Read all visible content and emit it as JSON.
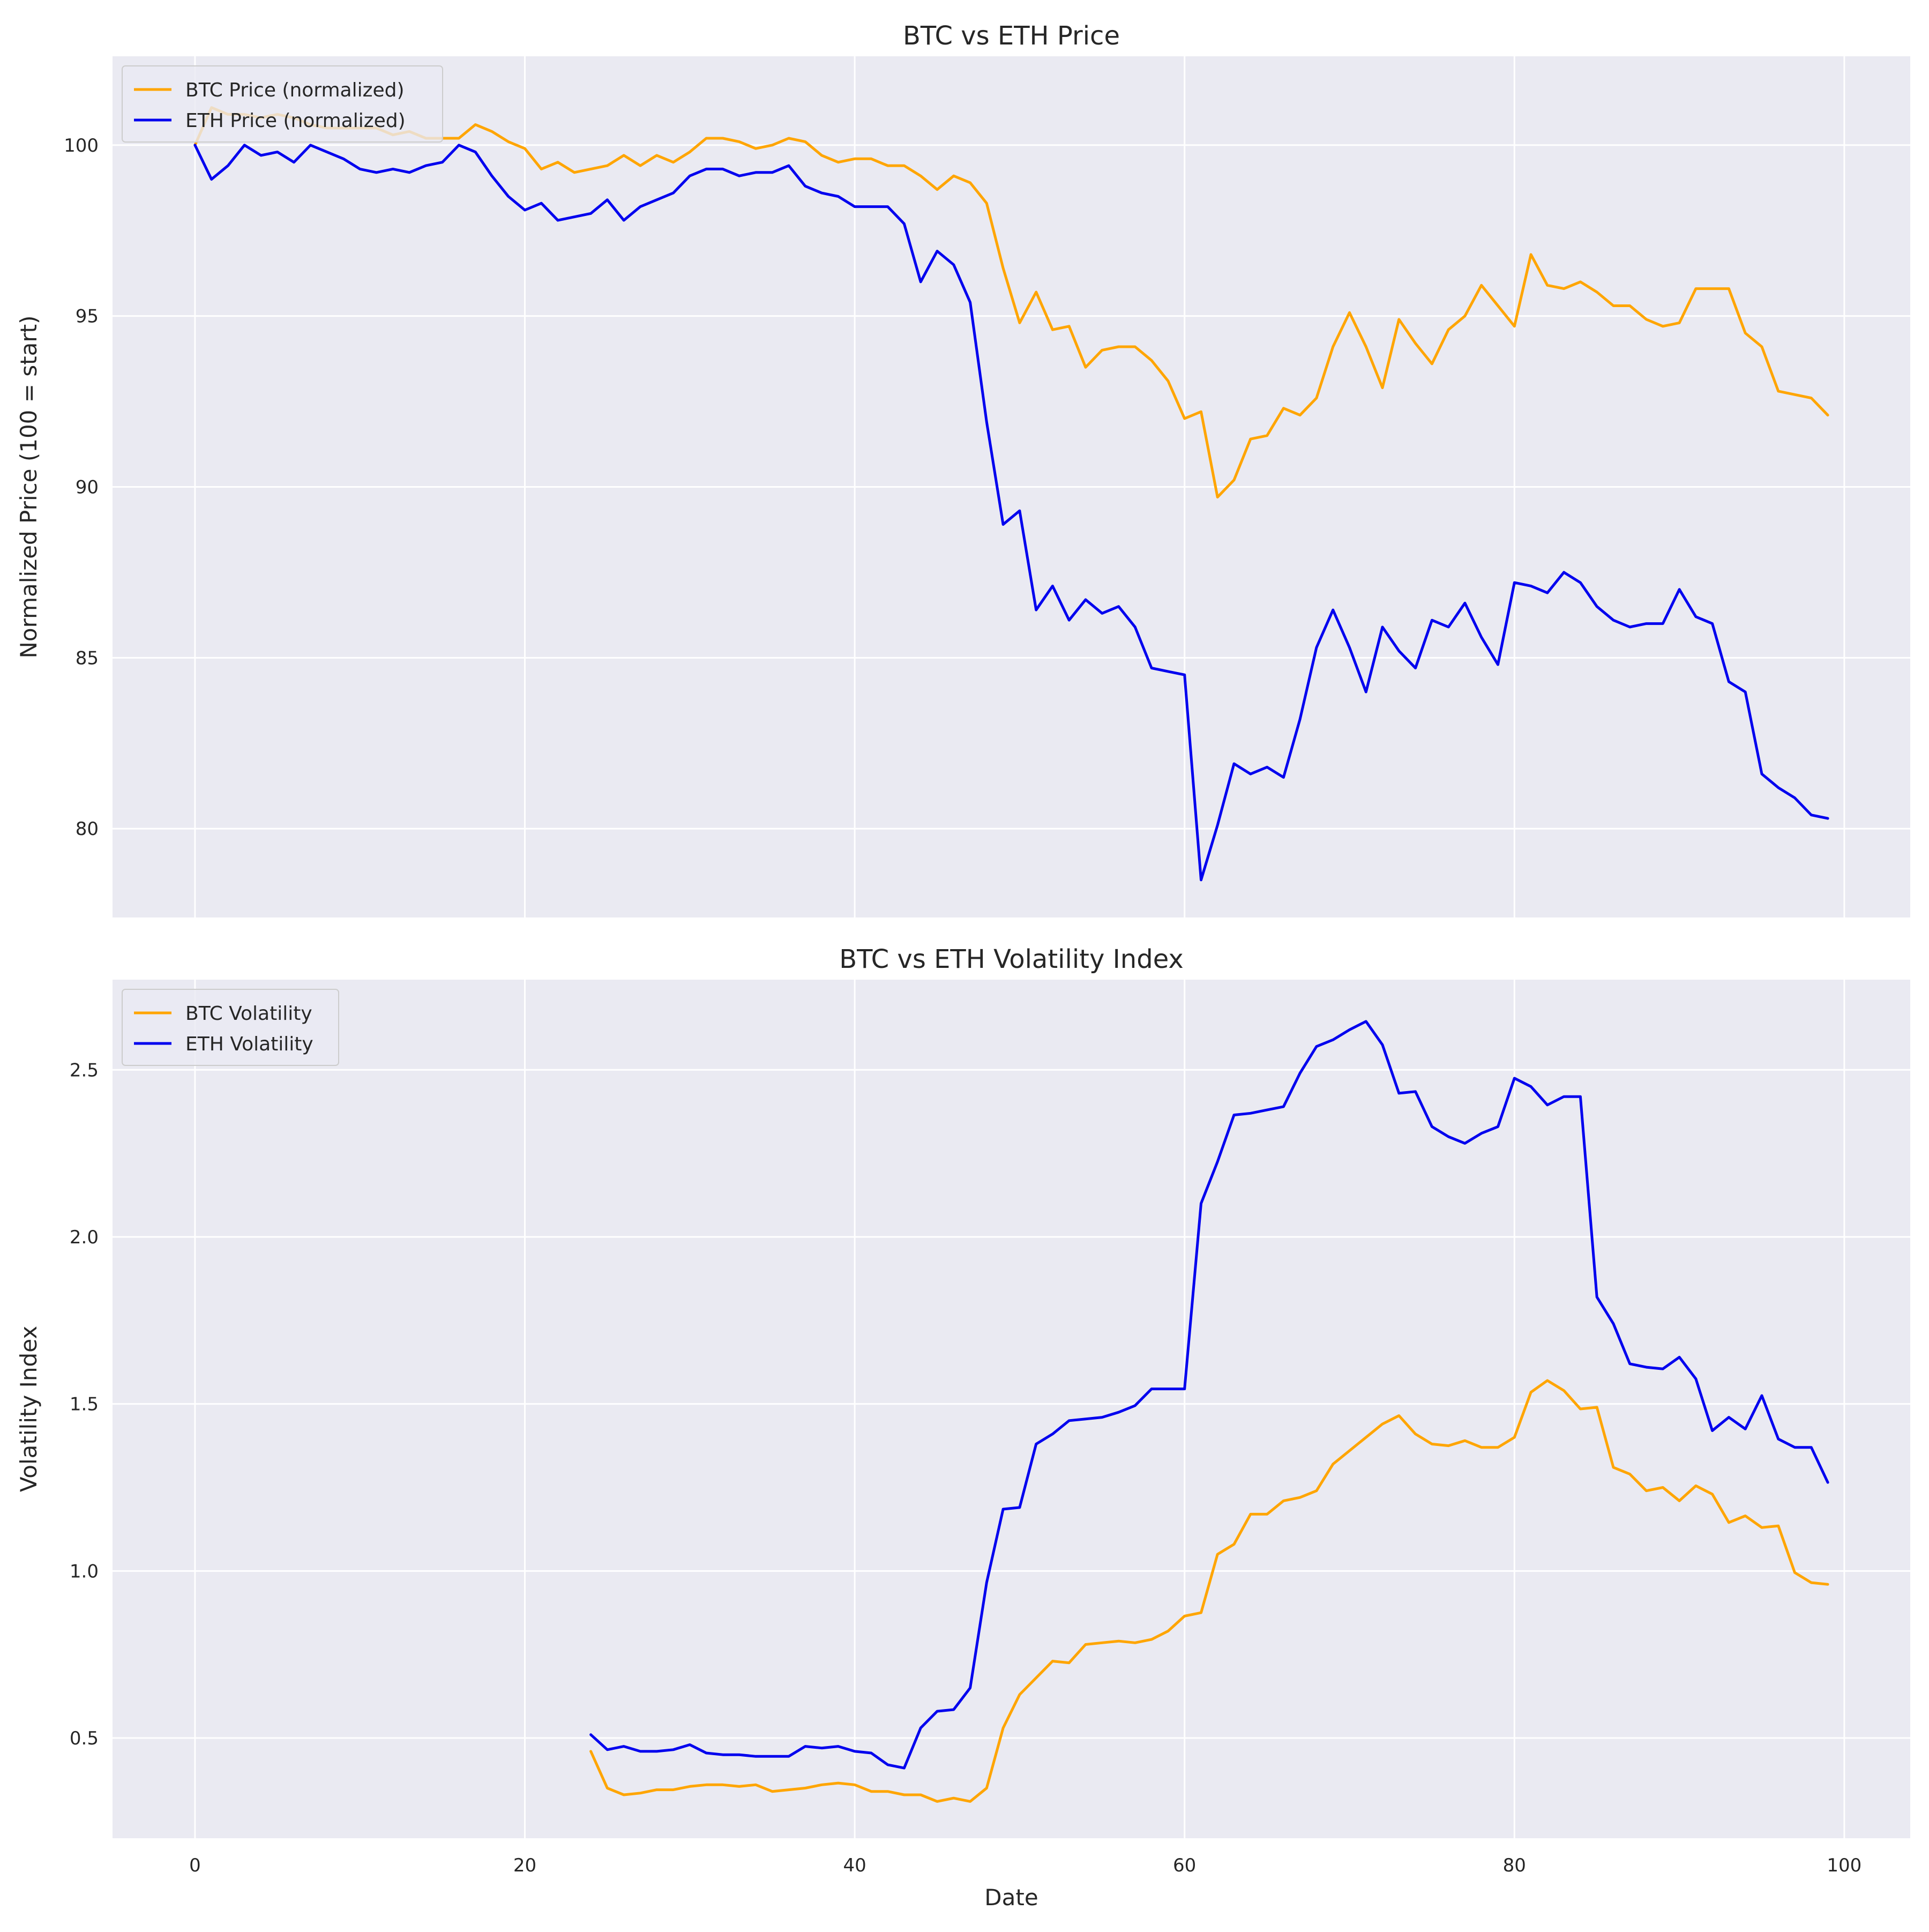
{
  "colors": {
    "btc": "#FFA500",
    "eth": "#0000EE",
    "panel_bg": "#EAEAF2",
    "grid": "#FFFFFF"
  },
  "chart_data": [
    {
      "type": "line",
      "title": "BTC vs ETH Price",
      "xlabel": "",
      "ylabel": "Normalized Price (100 = start)",
      "xlim": [
        -5,
        104
      ],
      "ylim": [
        77.4,
        102.6
      ],
      "xticks": [
        0,
        20,
        40,
        60,
        80,
        100
      ],
      "yticks": [
        80,
        85,
        90,
        95,
        100
      ],
      "ytick_labels": [
        "80",
        "85",
        "90",
        "95",
        "100"
      ],
      "grid": true,
      "legend_position": "upper-left",
      "x_start": 0,
      "series": [
        {
          "name": "BTC Price (normalized)",
          "color": "#FFA500",
          "values": [
            100.0,
            101.1,
            100.9,
            100.9,
            100.8,
            100.9,
            100.8,
            100.6,
            100.5,
            100.5,
            100.5,
            100.5,
            100.3,
            100.4,
            100.2,
            100.2,
            100.2,
            100.6,
            100.4,
            100.1,
            99.9,
            99.3,
            99.5,
            99.2,
            99.3,
            99.4,
            99.7,
            99.4,
            99.7,
            99.5,
            99.8,
            100.2,
            100.2,
            100.1,
            99.9,
            100.0,
            100.2,
            100.1,
            99.7,
            99.5,
            99.6,
            99.6,
            99.4,
            99.4,
            99.1,
            98.7,
            99.1,
            98.9,
            98.3,
            96.4,
            94.8,
            95.7,
            94.6,
            94.7,
            93.5,
            94.0,
            94.1,
            94.1,
            93.7,
            93.1,
            92.0,
            92.2,
            89.7,
            90.2,
            91.4,
            91.5,
            92.3,
            92.1,
            92.6,
            94.1,
            95.1,
            94.1,
            92.9,
            94.9,
            94.2,
            93.6,
            94.6,
            95.0,
            95.9,
            95.3,
            94.7,
            96.8,
            95.9,
            95.8,
            96.0,
            95.7,
            95.3,
            95.3,
            94.9,
            94.7,
            94.8,
            95.8,
            95.8,
            95.8,
            94.5,
            94.1,
            92.8,
            92.7,
            92.6,
            92.1
          ]
        },
        {
          "name": "ETH Price (normalized)",
          "color": "#0000EE",
          "values": [
            100.0,
            99.0,
            99.4,
            100.0,
            99.7,
            99.8,
            99.5,
            100.0,
            99.8,
            99.6,
            99.3,
            99.2,
            99.3,
            99.2,
            99.4,
            99.5,
            100.0,
            99.8,
            99.1,
            98.5,
            98.1,
            98.3,
            97.8,
            97.9,
            98.0,
            98.4,
            97.8,
            98.2,
            98.4,
            98.6,
            99.1,
            99.3,
            99.3,
            99.1,
            99.2,
            99.2,
            99.4,
            98.8,
            98.6,
            98.5,
            98.2,
            98.2,
            98.2,
            97.7,
            96.0,
            96.9,
            96.5,
            95.4,
            91.9,
            88.9,
            89.3,
            86.4,
            87.1,
            86.1,
            86.7,
            86.3,
            86.5,
            85.9,
            84.7,
            84.6,
            84.5,
            78.5,
            80.1,
            81.9,
            81.6,
            81.8,
            81.5,
            83.2,
            85.3,
            86.4,
            85.3,
            84.0,
            85.9,
            85.2,
            84.7,
            86.1,
            85.9,
            86.6,
            85.6,
            84.8,
            87.2,
            87.1,
            86.9,
            87.5,
            87.2,
            86.5,
            86.1,
            85.9,
            86.0,
            86.0,
            87.0,
            86.2,
            86.0,
            84.3,
            84.0,
            81.6,
            81.2,
            80.9,
            80.4,
            80.3
          ]
        }
      ]
    },
    {
      "type": "line",
      "title": "BTC vs ETH Volatility Index",
      "xlabel": "Date",
      "ylabel": "Volatility Index",
      "xlim": [
        -5,
        104
      ],
      "ylim": [
        0.2,
        2.77
      ],
      "xticks": [
        0,
        20,
        40,
        60,
        80,
        100
      ],
      "xtick_labels": [
        "0",
        "20",
        "40",
        "60",
        "80",
        "100"
      ],
      "yticks": [
        0.5,
        1.0,
        1.5,
        2.0,
        2.5
      ],
      "ytick_labels": [
        "0.5",
        "1.0",
        "1.5",
        "2.0",
        "2.5"
      ],
      "grid": true,
      "legend_position": "upper-left",
      "x_start": 24,
      "series": [
        {
          "name": "BTC Volatility",
          "color": "#FFA500",
          "values": [
            0.46,
            0.35,
            0.33,
            0.335,
            0.345,
            0.345,
            0.355,
            0.36,
            0.36,
            0.355,
            0.36,
            0.34,
            0.345,
            0.35,
            0.36,
            0.365,
            0.36,
            0.34,
            0.34,
            0.33,
            0.33,
            0.31,
            0.32,
            0.31,
            0.35,
            0.53,
            0.63,
            0.68,
            0.73,
            0.725,
            0.78,
            0.785,
            0.79,
            0.785,
            0.795,
            0.82,
            0.865,
            0.875,
            1.05,
            1.08,
            1.17,
            1.17,
            1.21,
            1.22,
            1.24,
            1.32,
            1.36,
            1.4,
            1.44,
            1.465,
            1.41,
            1.38,
            1.375,
            1.39,
            1.37,
            1.37,
            1.4,
            1.535,
            1.57,
            1.54,
            1.485,
            1.49,
            1.31,
            1.29,
            1.24,
            1.25,
            1.21,
            1.255,
            1.23,
            1.145,
            1.165,
            1.13,
            1.135,
            0.995,
            0.965,
            0.96
          ]
        },
        {
          "name": "ETH Volatility",
          "color": "#0000EE",
          "values": [
            0.51,
            0.465,
            0.475,
            0.46,
            0.46,
            0.465,
            0.48,
            0.455,
            0.45,
            0.45,
            0.445,
            0.445,
            0.445,
            0.475,
            0.47,
            0.475,
            0.46,
            0.455,
            0.42,
            0.41,
            0.53,
            0.58,
            0.585,
            0.65,
            0.965,
            1.185,
            1.19,
            1.38,
            1.41,
            1.45,
            1.455,
            1.46,
            1.475,
            1.495,
            1.545,
            1.545,
            1.545,
            2.1,
            2.225,
            2.365,
            2.37,
            2.38,
            2.39,
            2.49,
            2.57,
            2.59,
            2.62,
            2.645,
            2.575,
            2.43,
            2.435,
            2.33,
            2.3,
            2.28,
            2.31,
            2.33,
            2.475,
            2.45,
            2.395,
            2.42,
            2.42,
            1.82,
            1.74,
            1.62,
            1.61,
            1.605,
            1.64,
            1.575,
            1.42,
            1.46,
            1.425,
            1.525,
            1.395,
            1.37,
            1.37,
            1.265
          ]
        }
      ]
    }
  ]
}
